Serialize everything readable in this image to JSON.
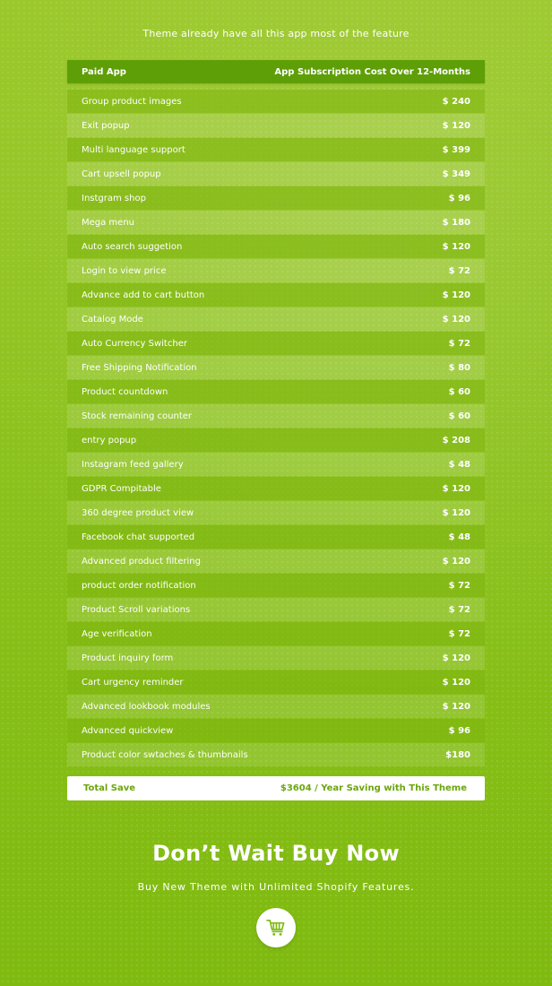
{
  "headline": "Theme already have all this app most of the feature",
  "table": {
    "col_app": "Paid App",
    "col_cost": "App Subscription Cost Over 12-Months",
    "rows": [
      {
        "name": "Group product images",
        "price": "$ 240"
      },
      {
        "name": "Exit popup",
        "price": "$ 120"
      },
      {
        "name": "Multi language support",
        "price": "$ 399"
      },
      {
        "name": "Cart upsell popup",
        "price": "$ 349"
      },
      {
        "name": "Instgram shop",
        "price": "$ 96"
      },
      {
        "name": "Mega menu",
        "price": "$ 180"
      },
      {
        "name": "Auto search suggetion",
        "price": "$ 120"
      },
      {
        "name": "Login to view price",
        "price": "$ 72"
      },
      {
        "name": "Advance add to cart button",
        "price": "$ 120"
      },
      {
        "name": "Catalog Mode",
        "price": "$ 120"
      },
      {
        "name": "Auto Currency Switcher",
        "price": "$ 72"
      },
      {
        "name": "Free Shipping Notification",
        "price": "$ 80"
      },
      {
        "name": "Product countdown",
        "price": "$ 60"
      },
      {
        "name": "Stock remaining counter",
        "price": "$ 60"
      },
      {
        "name": "entry popup",
        "price": "$ 208"
      },
      {
        "name": "Instagram feed gallery",
        "price": "$ 48"
      },
      {
        "name": "GDPR Compitable",
        "price": "$ 120"
      },
      {
        "name": "360 degree product view",
        "price": "$ 120"
      },
      {
        "name": "Facebook chat supported",
        "price": "$ 48"
      },
      {
        "name": "Advanced product filtering",
        "price": "$ 120"
      },
      {
        "name": "product order notification",
        "price": "$ 72"
      },
      {
        "name": "Product Scroll variations",
        "price": "$ 72"
      },
      {
        "name": "Age verification",
        "price": "$ 72"
      },
      {
        "name": "Product inquiry form",
        "price": "$ 120"
      },
      {
        "name": "Cart urgency reminder",
        "price": "$ 120"
      },
      {
        "name": "Advanced lookbook modules",
        "price": "$ 120"
      },
      {
        "name": "Advanced quickview",
        "price": "$ 96"
      },
      {
        "name": "Product color swtaches & thumbnails",
        "price": "$180"
      }
    ]
  },
  "total": {
    "label": "Total Save",
    "value": "$3604 / Year Saving with This Theme"
  },
  "cta": {
    "title": "Don’t Wait Buy Now",
    "subtitle": "Buy New Theme with Unlimited Shopify Features.",
    "icon": "cart-icon"
  },
  "colors": {
    "accent": "#8cc21c",
    "header": "#5e9f08",
    "total_text": "#6aa60b"
  }
}
